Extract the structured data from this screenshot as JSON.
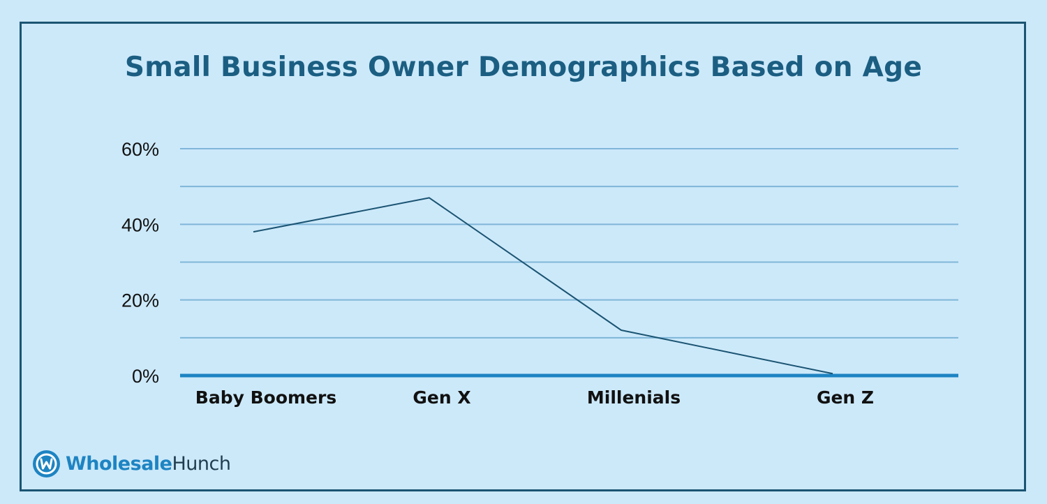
{
  "chart_data": {
    "type": "line",
    "title": "Small Business Owner Demographics Based on Age",
    "xlabel": "",
    "ylabel": "",
    "categories": [
      "Baby Boomers",
      "Gen X",
      "Millenials",
      "Gen Z"
    ],
    "series": [
      {
        "values": [
          38,
          47,
          12,
          0.5
        ]
      }
    ],
    "ylim": [
      0,
      60
    ],
    "yticks": [
      {
        "value": 0,
        "label": "0%"
      },
      {
        "value": 20,
        "label": "20%"
      },
      {
        "value": 40,
        "label": "40%"
      },
      {
        "value": 60,
        "label": "60%"
      }
    ],
    "gridlines": [
      10,
      20,
      30,
      40,
      50,
      60
    ],
    "grid": true,
    "legend": "none",
    "colors": {
      "line": "#1b5472",
      "grid": "#7fb6d8",
      "baseline": "#1e84c2",
      "title": "#1b5e82",
      "background": "#cce9fa"
    }
  },
  "branding": {
    "logo_part1": "Wholesale",
    "logo_part2": "Hunch",
    "logo_icon": "wholesalehunch-logo-icon"
  }
}
